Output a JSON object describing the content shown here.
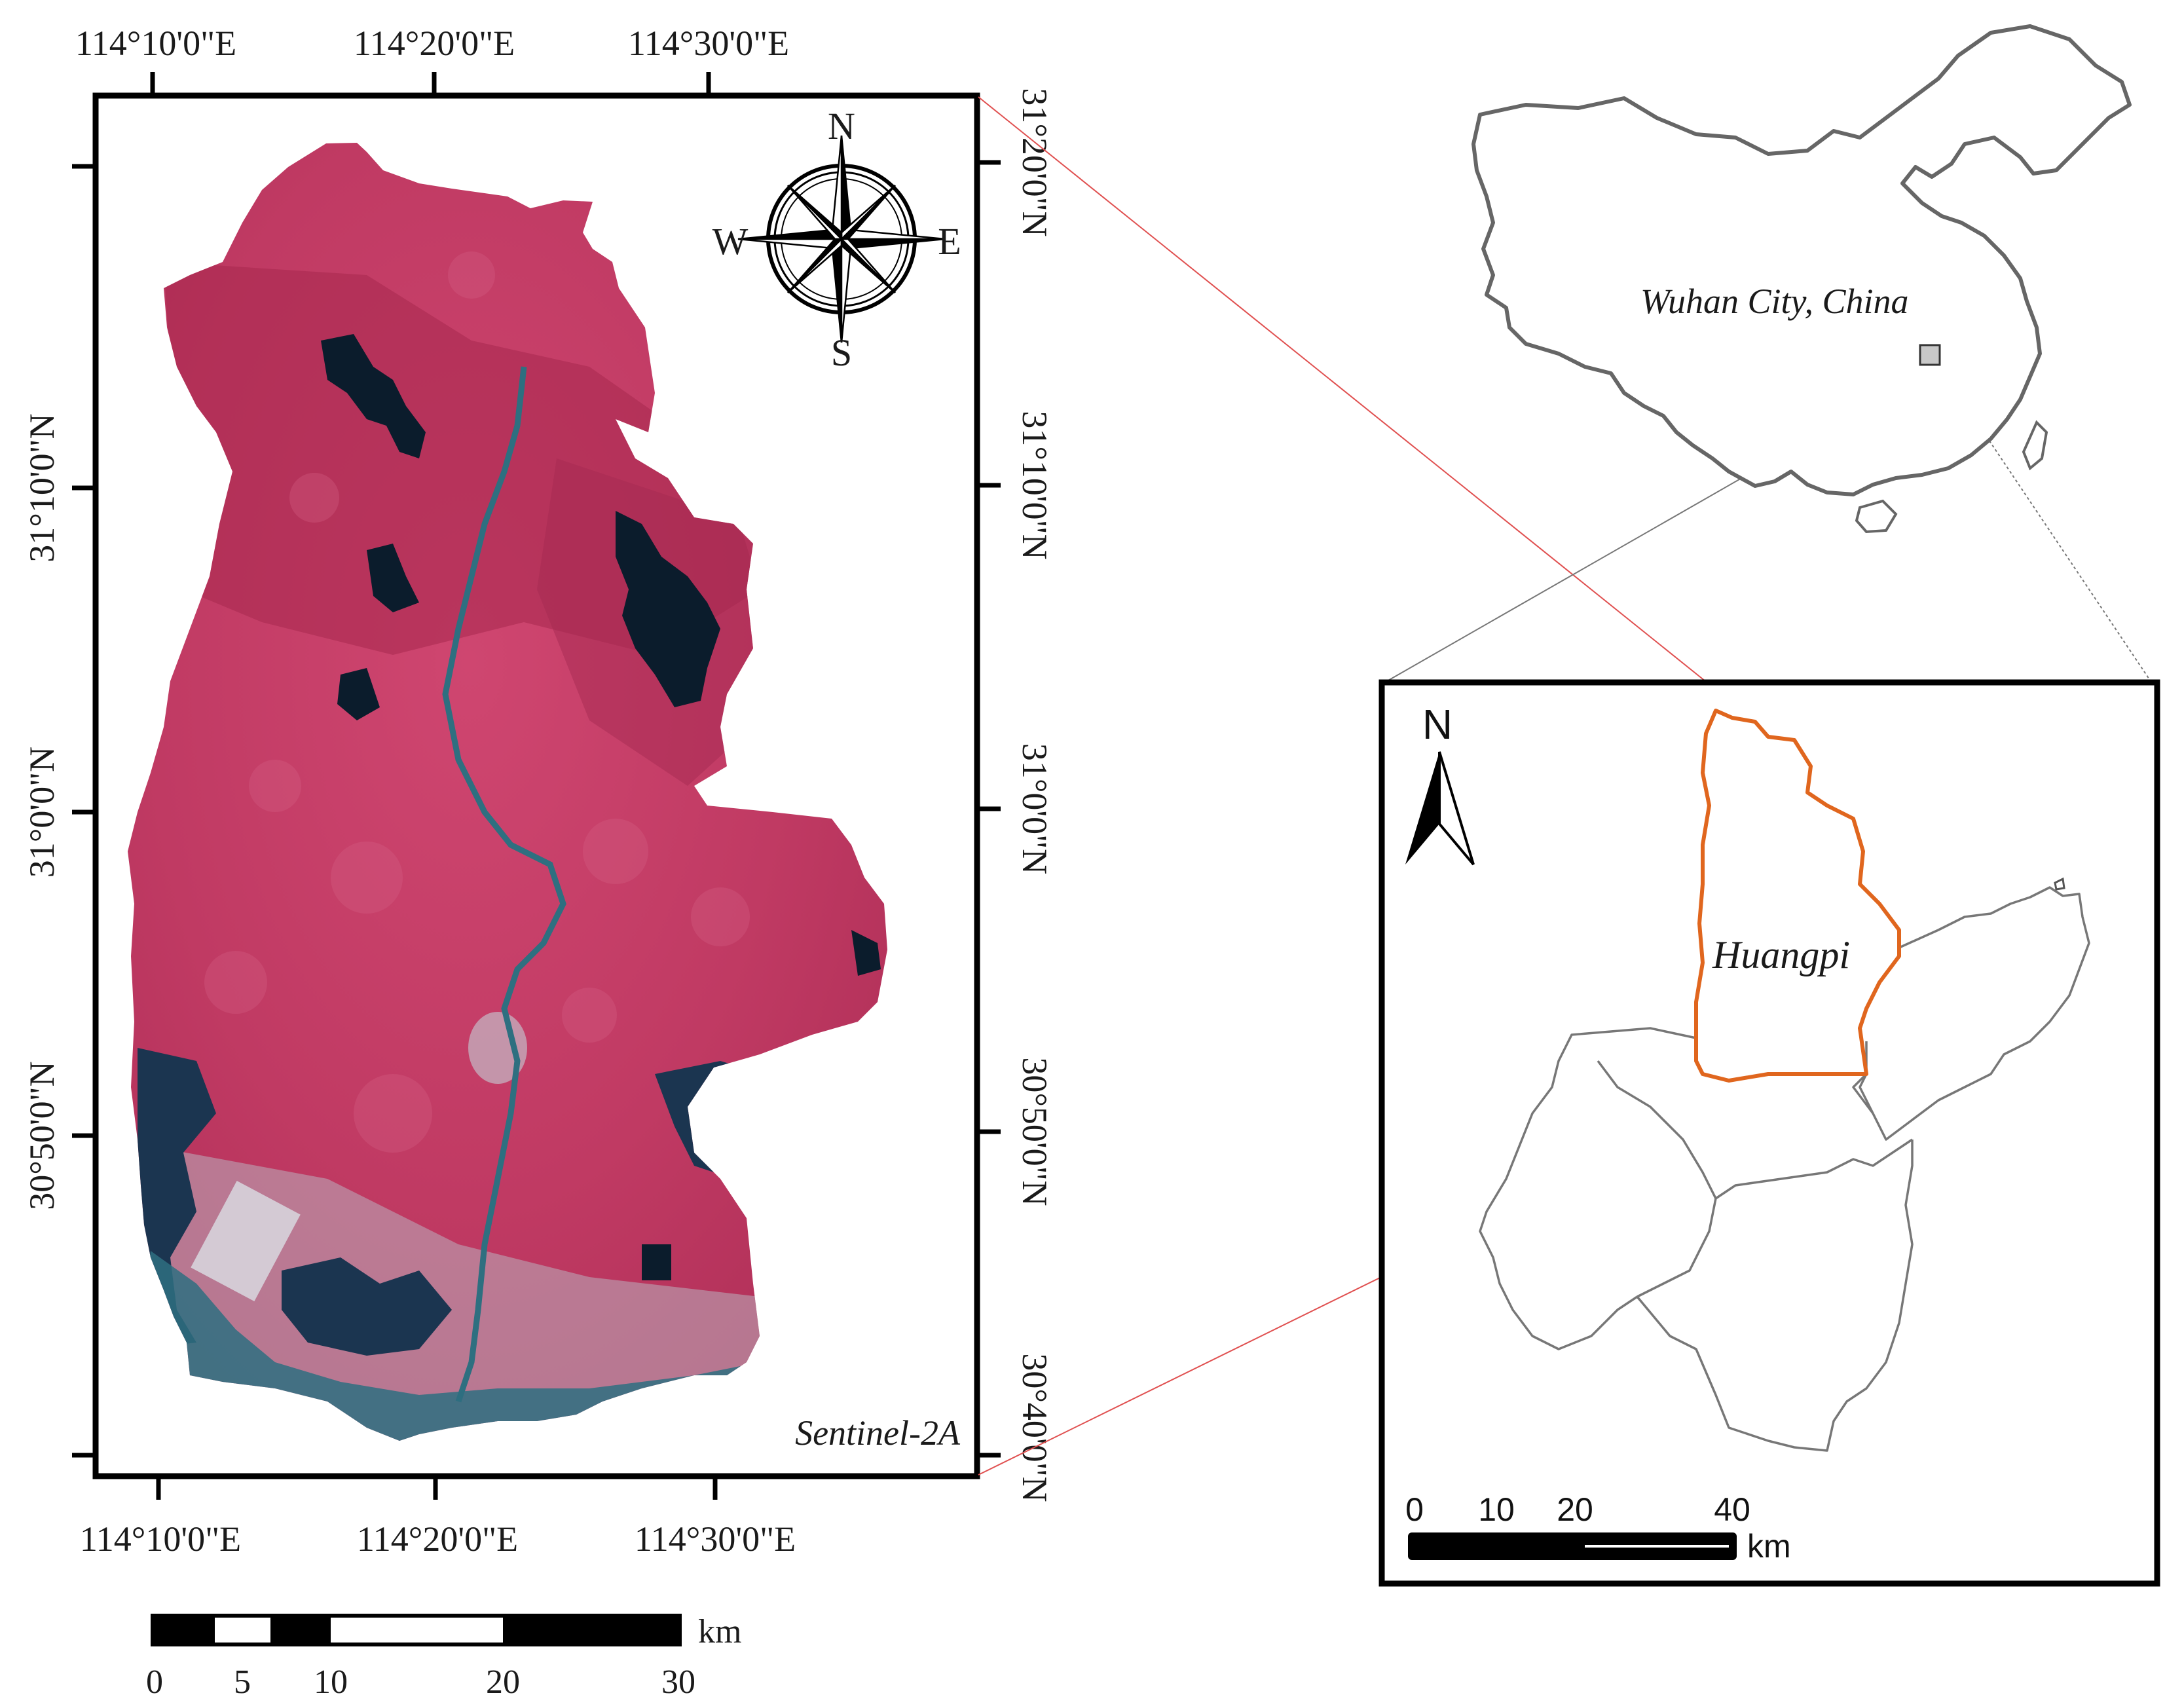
{
  "main_map": {
    "top_lon_labels": [
      "114°10'0\"E",
      "114°20'0\"E",
      "114°30'0\"E"
    ],
    "bottom_lon_labels": [
      "114°10'0\"E",
      "114°20'0\"E",
      "114°30'0\"E"
    ],
    "left_lat_labels": [
      "31°10'0\"N",
      "31°0'0\"N",
      "30°50'0\"N"
    ],
    "right_lat_labels": [
      "31°20'0\"N",
      "31°10'0\"N",
      "31°0'0\"N",
      "30°50'0\"N",
      "30°40'0\"N"
    ],
    "sensor_label": "Sentinel-2A",
    "compass": {
      "n": "N",
      "s": "S",
      "e": "E",
      "w": "W"
    },
    "scale_bar": {
      "ticks": [
        "0",
        "5",
        "10",
        "20",
        "30"
      ],
      "unit": "km"
    },
    "colors": {
      "vegetation": "#c53a66",
      "water": "#1b3550",
      "river": "#2e6f80",
      "urban": "#b9b0bd"
    }
  },
  "china_map": {
    "location_label": "Wuhan City, China"
  },
  "inset_map": {
    "north": "N",
    "district_label": "Huangpi",
    "scale_bar": {
      "ticks": [
        "0",
        "10",
        "20",
        "40"
      ],
      "unit": "km"
    },
    "colors": {
      "huangpi_outline": "#e0661e",
      "district_outline": "#777777"
    }
  }
}
